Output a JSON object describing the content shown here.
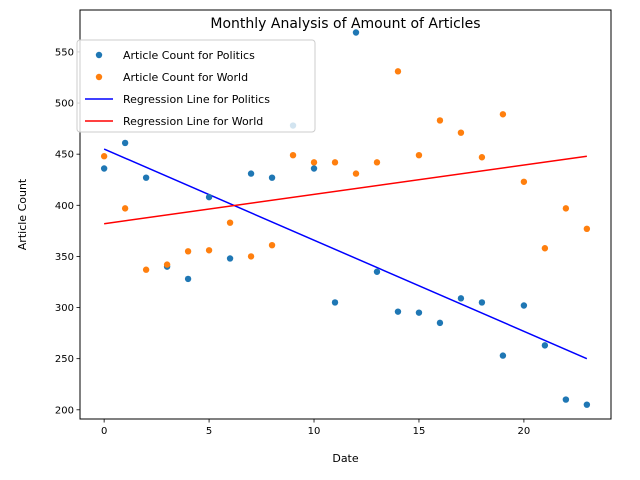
{
  "chart_data": {
    "type": "scatter",
    "title": "Monthly Analysis of Amount of Articles",
    "xlabel": "Date",
    "ylabel": "Article Count",
    "xlim": [
      -1.15,
      24.15
    ],
    "ylim": [
      191,
      591
    ],
    "xticks": [
      0,
      5,
      10,
      15,
      20
    ],
    "yticks": [
      200,
      250,
      300,
      350,
      400,
      450,
      500,
      550
    ],
    "grid": false,
    "legend_position": "top-left",
    "x": [
      0,
      1,
      2,
      3,
      4,
      5,
      6,
      7,
      8,
      9,
      10,
      11,
      12,
      13,
      14,
      15,
      16,
      17,
      18,
      19,
      20,
      21,
      22,
      23
    ],
    "series": [
      {
        "name": "Article Count for Politics",
        "color": "#1f77b4",
        "values": [
          436,
          461,
          427,
          340,
          328,
          408,
          348,
          431,
          427,
          478,
          436,
          305,
          569,
          335,
          296,
          295,
          285,
          309,
          305,
          253,
          302,
          263,
          210,
          205
        ]
      },
      {
        "name": "Article Count for World",
        "color": "#ff7f0e",
        "values": [
          448,
          397,
          337,
          342,
          355,
          356,
          383,
          350,
          361,
          449,
          442,
          442,
          431,
          442,
          531,
          449,
          483,
          471,
          447,
          489,
          423,
          358,
          397,
          377
        ]
      }
    ],
    "regression_lines": [
      {
        "name": "Regression Line for Politics",
        "color": "#0000ff",
        "start": [
          0,
          455
        ],
        "end": [
          23,
          250
        ]
      },
      {
        "name": "Regression Line for World",
        "color": "#ff0000",
        "start": [
          0,
          382
        ],
        "end": [
          23,
          448
        ]
      }
    ]
  }
}
